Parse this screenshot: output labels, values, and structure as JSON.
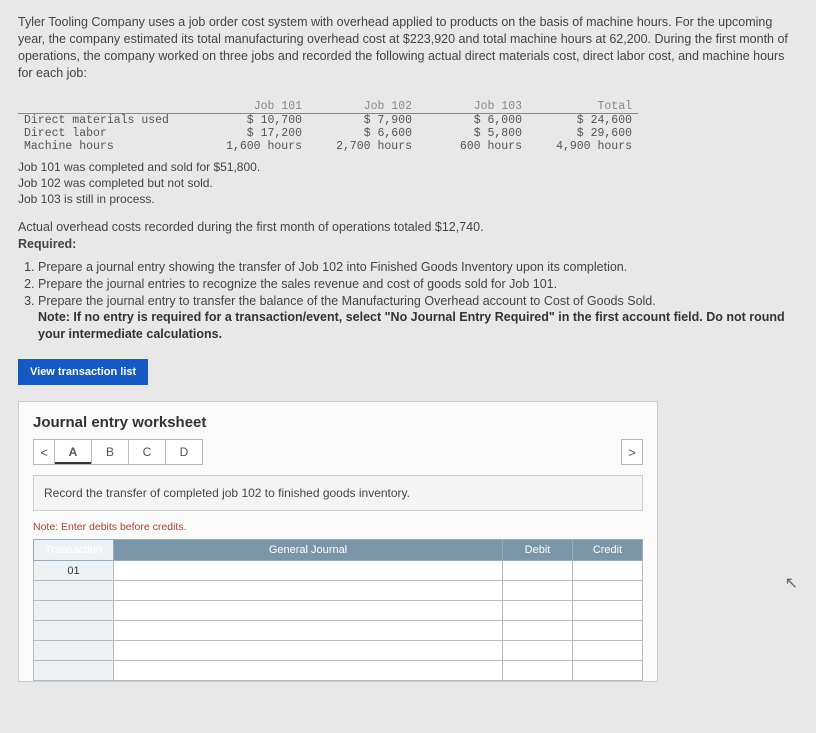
{
  "intro": "Tyler Tooling Company uses a job order cost system with overhead applied to products on the basis of machine hours. For the upcoming year, the company estimated its total manufacturing overhead cost at $223,920 and total machine hours at 62,200. During the first month of operations, the company worked on three jobs and recorded the following actual direct materials cost, direct labor cost, and machine hours for each job:",
  "jobTable": {
    "headers": [
      "",
      "Job 101",
      "Job 102",
      "Job 103",
      "Total"
    ],
    "rows": [
      [
        "Direct materials used",
        "$ 10,700",
        "$ 7,900",
        "$ 6,000",
        "$ 24,600"
      ],
      [
        "Direct labor",
        "$ 17,200",
        "$ 6,600",
        "$ 5,800",
        "$ 29,600"
      ],
      [
        "Machine hours",
        "1,600 hours",
        "2,700 hours",
        "600 hours",
        "4,900 hours"
      ]
    ]
  },
  "notes": {
    "l1": "Job 101 was completed and sold for $51,800.",
    "l2": "Job 102 was completed but not sold.",
    "l3": "Job 103 is still in process."
  },
  "mid1": "Actual overhead costs recorded during the first month of operations totaled $12,740.",
  "mid2": "Required:",
  "req": {
    "r1": "Prepare a journal entry showing the transfer of Job 102 into Finished Goods Inventory upon its completion.",
    "r2": "Prepare the journal entries to recognize the sales revenue and cost of goods sold for Job 101.",
    "r3": "Prepare the journal entry to transfer the balance of the Manufacturing Overhead account to Cost of Goods Sold.",
    "note": "Note: If no entry is required for a transaction/event, select \"No Journal Entry Required\" in the first account field. Do not round your intermediate calculations."
  },
  "btn": "View transaction list",
  "worksheet": {
    "title": "Journal entry worksheet",
    "arrowL": "<",
    "arrowR": ">",
    "tabs": [
      "A",
      "B",
      "C",
      "D"
    ],
    "instruction": "Record the transfer of completed job 102 to finished goods inventory.",
    "noteRed": "Note: Enter debits before credits.",
    "headers": {
      "tx": "Transaction",
      "gj": "General Journal",
      "db": "Debit",
      "cr": "Credit"
    },
    "txNum": "01"
  }
}
